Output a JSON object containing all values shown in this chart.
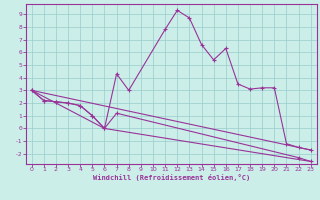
{
  "xlabel": "Windchill (Refroidissement éolien,°C)",
  "xlim": [
    -0.5,
    23.5
  ],
  "ylim": [
    -2.8,
    9.8
  ],
  "xticks": [
    0,
    1,
    2,
    3,
    4,
    5,
    6,
    7,
    8,
    9,
    10,
    11,
    12,
    13,
    14,
    15,
    16,
    17,
    18,
    19,
    20,
    21,
    22,
    23
  ],
  "yticks": [
    -2,
    -1,
    0,
    1,
    2,
    3,
    4,
    5,
    6,
    7,
    8,
    9
  ],
  "bg_color": "#cceee8",
  "line_color": "#993399",
  "grid_color": "#99cccc",
  "line1_x": [
    0,
    1,
    2,
    3,
    4,
    5,
    6,
    7,
    8,
    11,
    12,
    13,
    14,
    15,
    16,
    17,
    18,
    19,
    20,
    21,
    22,
    23
  ],
  "line1_y": [
    3.0,
    2.2,
    2.1,
    2.0,
    1.8,
    1.0,
    0.0,
    4.3,
    3.0,
    7.8,
    9.3,
    8.7,
    6.6,
    5.4,
    6.3,
    3.5,
    3.1,
    3.2,
    3.2,
    -1.2,
    -1.5,
    -1.7
  ],
  "line2_x": [
    0,
    1,
    2,
    3,
    4,
    5,
    6,
    7,
    22,
    23
  ],
  "line2_y": [
    3.0,
    2.2,
    2.1,
    2.0,
    1.8,
    1.0,
    0.0,
    1.2,
    -2.3,
    -2.6
  ],
  "line3_x": [
    0,
    23
  ],
  "line3_y": [
    3.0,
    -1.7
  ],
  "line4_x": [
    0,
    6,
    23
  ],
  "line4_y": [
    3.0,
    0.0,
    -2.6
  ]
}
